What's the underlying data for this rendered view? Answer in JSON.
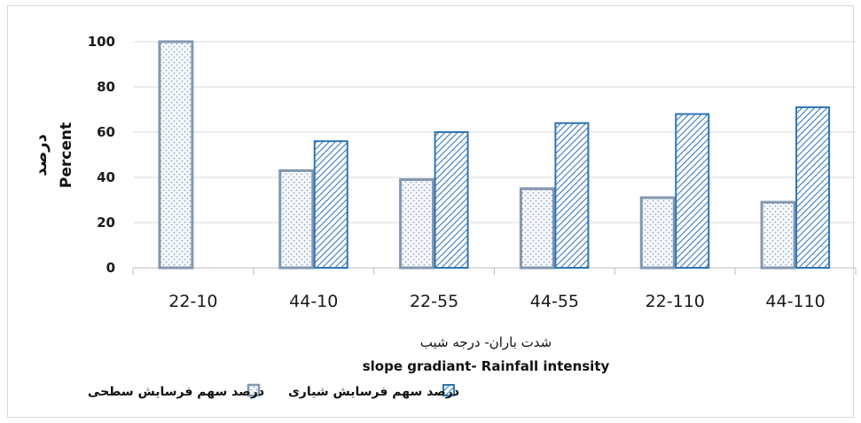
{
  "chart_data": {
    "type": "bar",
    "title": "",
    "categories": [
      "22-10",
      "44-10",
      "22-55",
      "44-55",
      "22-110",
      "44-110"
    ],
    "series": [
      {
        "name": "درصد سهم فرسایش سطحی",
        "values": [
          100,
          43,
          39,
          35,
          31,
          29
        ],
        "color": "#8497b0",
        "pattern": "dots"
      },
      {
        "name": "درصد سهم فرسایش شیاری",
        "values": [
          0,
          56,
          60,
          64,
          68,
          71
        ],
        "color": "#2e75b6",
        "pattern": "diagonal"
      }
    ],
    "ylim": [
      0,
      100
    ],
    "yticks": [
      "0",
      "20",
      "40",
      "60",
      "80",
      "100"
    ],
    "ylabel_fa": "درصد",
    "ylabel_en": "Percent",
    "xlabel_fa": "شدت باران- درجه شیب",
    "xlabel_en": "slope gradiant- Rainfall intensity",
    "grid": true,
    "legend_position": "bottom"
  }
}
